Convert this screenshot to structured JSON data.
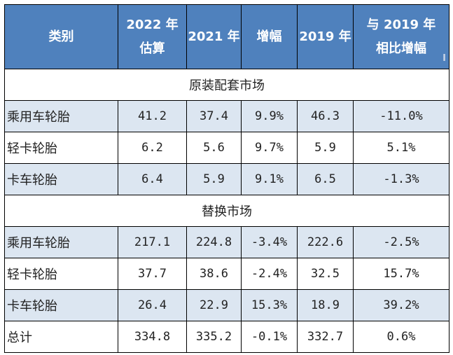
{
  "header": [
    "类别",
    "2022 年\n估算",
    "2021 年",
    "增幅",
    "2019 年",
    "与 2019 年\n相比增幅"
  ],
  "sections": [
    {
      "title": "原装配套市场",
      "rows": [
        {
          "shaded": true,
          "cells": [
            "乘用车轮胎",
            "41.2",
            "37.4",
            "9.9%",
            "46.3",
            "-11.0%"
          ]
        },
        {
          "shaded": false,
          "cells": [
            "轻卡轮胎",
            "6.2",
            "5.6",
            "9.7%",
            "5.9",
            "5.1%"
          ]
        },
        {
          "shaded": true,
          "cells": [
            "卡车轮胎",
            "6.4",
            "5.9",
            "9.1%",
            "6.5",
            "-1.3%"
          ]
        }
      ]
    },
    {
      "title": "替换市场",
      "rows": [
        {
          "shaded": true,
          "cells": [
            "乘用车轮胎",
            "217.1",
            "224.8",
            "-3.4%",
            "222.6",
            "-2.5%"
          ]
        },
        {
          "shaded": false,
          "cells": [
            "轻卡轮胎",
            "37.7",
            "38.6",
            "-2.4%",
            "32.5",
            "15.7%"
          ]
        },
        {
          "shaded": true,
          "cells": [
            "卡车轮胎",
            "26.4",
            "22.9",
            "15.3%",
            "18.9",
            "39.2%"
          ]
        }
      ]
    }
  ],
  "total": {
    "shaded": false,
    "cells": [
      "总计",
      "334.8",
      "335.2",
      "-0.1%",
      "332.7",
      "0.6%"
    ]
  }
}
